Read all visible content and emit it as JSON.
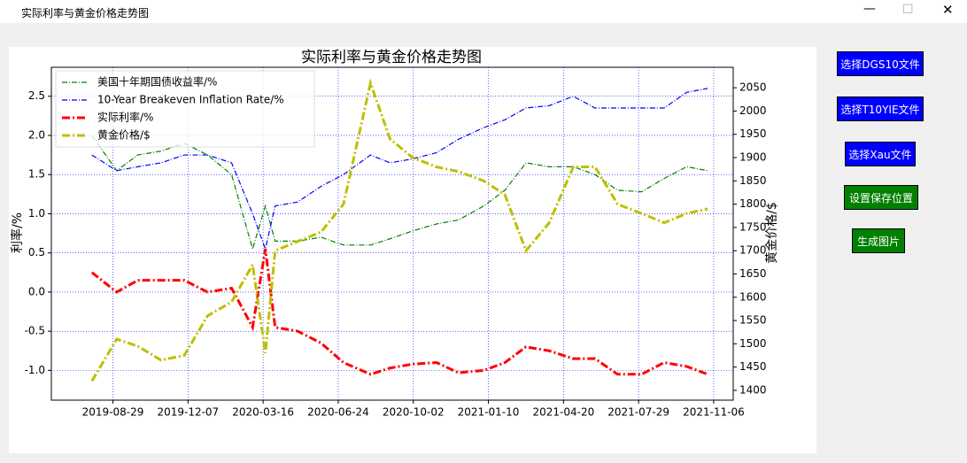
{
  "window": {
    "title": "实际利率与黄金价格走势图"
  },
  "buttons": [
    "选择DGS10文件",
    "选择T10YIE文件",
    "选择Xau文件",
    "设置保存位置",
    "生成图片"
  ],
  "chart_data": {
    "type": "line",
    "title": "实际利率与黄金价格走势图",
    "y_label": "利率/%",
    "y2_label": "黄金价格/$",
    "x": [
      "2019-08-01",
      "2019-09-03",
      "2019-10-01",
      "2019-11-01",
      "2019-12-02",
      "2020-01-02",
      "2020-02-03",
      "2020-03-02",
      "2020-03-19",
      "2020-04-01",
      "2020-05-01",
      "2020-06-01",
      "2020-07-01",
      "2020-08-06",
      "2020-09-01",
      "2020-10-01",
      "2020-11-02",
      "2020-12-01",
      "2021-01-04",
      "2021-02-01",
      "2021-03-01",
      "2021-04-01",
      "2021-05-03",
      "2021-06-01",
      "2021-07-01",
      "2021-08-02",
      "2021-09-01",
      "2021-10-01",
      "2021-10-29"
    ],
    "xlim": [
      "2019-06-08",
      "2021-12-02"
    ],
    "xticks": [
      "2019-08-29",
      "2019-12-07",
      "2020-03-16",
      "2020-06-24",
      "2020-10-02",
      "2021-01-10",
      "2021-04-20",
      "2021-07-29",
      "2021-11-06"
    ],
    "ylim": [
      -1.38,
      2.87
    ],
    "yticks": [
      {
        "value": -1,
        "label": "-1.0"
      },
      -0.5,
      {
        "value": 0,
        "label": "0.0"
      },
      0.5,
      {
        "value": 1,
        "label": "1.0"
      },
      1.5,
      {
        "value": 2,
        "label": "2.0"
      },
      2.5
    ],
    "y2lim": [
      1379,
      2094
    ],
    "y2ticks": [
      1400,
      1450,
      1500,
      1550,
      1600,
      1650,
      1700,
      1750,
      1800,
      1850,
      1900,
      1950,
      2000,
      2050
    ],
    "grid": true,
    "legend": "upper-left",
    "series": [
      {
        "name": "美国十年期国债收益率/%",
        "color": "#008000",
        "width": 1.2,
        "values": [
          2.0,
          1.55,
          1.75,
          1.8,
          1.9,
          1.75,
          1.5,
          0.55,
          1.1,
          0.65,
          0.65,
          0.7,
          0.6,
          0.6,
          0.68,
          0.78,
          0.87,
          0.92,
          1.1,
          1.3,
          1.65,
          1.6,
          1.6,
          1.5,
          1.3,
          1.28,
          1.45,
          1.6,
          1.55
        ]
      },
      {
        "name": "10-Year Breakeven Inflation Rate/%",
        "color": "#0000ff",
        "width": 1.2,
        "values": [
          1.75,
          1.55,
          1.6,
          1.65,
          1.75,
          1.75,
          1.65,
          1.0,
          0.55,
          1.1,
          1.15,
          1.35,
          1.5,
          1.75,
          1.65,
          1.7,
          1.78,
          1.95,
          2.1,
          2.2,
          2.35,
          2.38,
          2.5,
          2.35,
          2.35,
          2.35,
          2.35,
          2.55,
          2.6
        ]
      },
      {
        "name": "实际利率/%",
        "color": "#ff0000",
        "width": 3,
        "values": [
          0.25,
          0.0,
          0.15,
          0.15,
          0.15,
          0.0,
          0.05,
          -0.45,
          0.55,
          -0.45,
          -0.5,
          -0.65,
          -0.9,
          -1.05,
          -0.97,
          -0.92,
          -0.9,
          -1.03,
          -1.0,
          -0.9,
          -0.7,
          -0.75,
          -0.85,
          -0.85,
          -1.05,
          -1.05,
          -0.9,
          -0.95,
          -1.05
        ]
      },
      {
        "name": "黄金价格/$",
        "color": "#bfbf00",
        "width": 3,
        "axis": "y2",
        "values": [
          1420,
          1510,
          1495,
          1465,
          1475,
          1560,
          1590,
          1670,
          1480,
          1700,
          1720,
          1740,
          1800,
          2060,
          1940,
          1900,
          1880,
          1870,
          1850,
          1820,
          1700,
          1760,
          1880,
          1880,
          1800,
          1780,
          1760,
          1780,
          1790
        ]
      }
    ]
  }
}
